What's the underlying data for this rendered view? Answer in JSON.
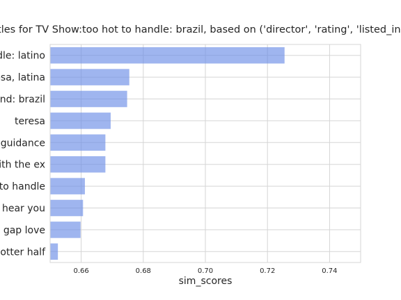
{
  "chart_data": {
    "type": "bar",
    "orientation": "horizontal",
    "title": "Recommend titles for TV Show:too hot to handle: brazil, based on ('director', 'rating', 'listed_in', 'description')",
    "xlabel": "sim_scores",
    "ylabel": "",
    "categories": [
      "too hot to handle: latino",
      "amor mosa, latina",
      "love is blind: brazil",
      "teresa",
      "parental guidance",
      "ex on the beach: with the ex",
      "too hot to handle",
      "i hear you",
      "age gap love",
      "my hotter half"
    ],
    "visible_labels": [
      "ndle: latino",
      "nosa, latina",
      "ound: brazil",
      "teresa",
      "l guidance",
      "with the ex",
      "t to handle",
      "i hear you",
      "e gap love",
      "hotter half"
    ],
    "values": [
      0.7255,
      0.6755,
      0.6748,
      0.6695,
      0.6678,
      0.6678,
      0.6612,
      0.6606,
      0.6598,
      0.6525
    ],
    "xlim": [
      0.65,
      0.75
    ],
    "xticks": [
      "0.66",
      "0.68",
      "0.70",
      "0.72",
      "0.74"
    ],
    "grid": true,
    "color": "#6c8ee6"
  }
}
